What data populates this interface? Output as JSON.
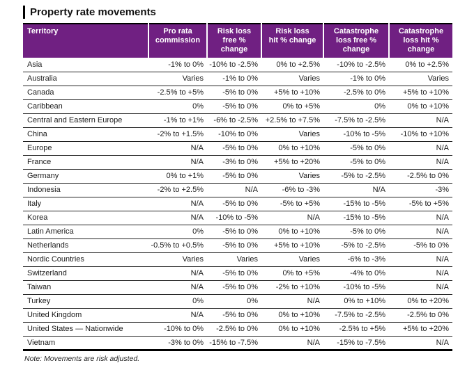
{
  "page": {
    "title": "Property rate movements",
    "note": "Note: Movements are risk adjusted."
  },
  "colors": {
    "header_bg": "#702082",
    "header_text": "#ffffff",
    "row_divider": "#222222",
    "table_bottom_border": "#000000"
  },
  "table": {
    "columns": [
      {
        "key": "territory",
        "label": "Territory"
      },
      {
        "key": "pro-rata-commission",
        "label": "Pro rata\ncommission"
      },
      {
        "key": "risk-loss-free-change",
        "label": "Risk loss\nfree %\nchange"
      },
      {
        "key": "risk-loss-hit-change",
        "label": "Risk loss\nhit % change"
      },
      {
        "key": "catastrophe-loss-free-change",
        "label": "Catastrophe\nloss free %\nchange"
      },
      {
        "key": "catastrophe-loss-hit-change",
        "label": "Catastrophe\nloss hit %\nchange"
      }
    ],
    "rows": [
      {
        "territory": "Asia",
        "values": [
          "-1% to 0%",
          "-10% to -2.5%",
          "0% to +2.5%",
          "-10% to -2.5%",
          "0% to +2.5%"
        ]
      },
      {
        "territory": "Australia",
        "values": [
          "Varies",
          "-1% to 0%",
          "Varies",
          "-1% to 0%",
          "Varies"
        ]
      },
      {
        "territory": "Canada",
        "values": [
          "-2.5% to +5%",
          "-5% to 0%",
          "+5% to +10%",
          "-2.5% to 0%",
          "+5% to +10%"
        ]
      },
      {
        "territory": "Caribbean",
        "values": [
          "0%",
          "-5% to 0%",
          "0% to +5%",
          "0%",
          "0% to +10%"
        ]
      },
      {
        "territory": "Central and Eastern Europe",
        "values": [
          "-1% to +1%",
          "-6% to -2.5%",
          "+2.5% to +7.5%",
          "-7.5% to -2.5%",
          "N/A"
        ]
      },
      {
        "territory": "China",
        "values": [
          "-2% to +1.5%",
          "-10% to 0%",
          "Varies",
          "-10% to -5%",
          "-10% to +10%"
        ]
      },
      {
        "territory": "Europe",
        "values": [
          "N/A",
          "-5% to 0%",
          "0% to +10%",
          "-5% to 0%",
          "N/A"
        ]
      },
      {
        "territory": "France",
        "values": [
          "N/A",
          "-3% to 0%",
          "+5% to +20%",
          "-5% to 0%",
          "N/A"
        ]
      },
      {
        "territory": "Germany",
        "values": [
          "0% to +1%",
          "-5% to 0%",
          "Varies",
          "-5% to -2.5%",
          "-2.5% to 0%"
        ]
      },
      {
        "territory": "Indonesia",
        "values": [
          "-2% to +2.5%",
          "N/A",
          "-6% to -3%",
          "N/A",
          "-3%"
        ]
      },
      {
        "territory": "Italy",
        "values": [
          "N/A",
          "-5% to 0%",
          "-5% to +5%",
          "-15% to -5%",
          "-5% to +5%"
        ]
      },
      {
        "territory": "Korea",
        "values": [
          "N/A",
          "-10% to -5%",
          "N/A",
          "-15% to -5%",
          "N/A"
        ]
      },
      {
        "territory": "Latin America",
        "values": [
          "0%",
          "-5% to 0%",
          "0% to +10%",
          "-5% to 0%",
          "N/A"
        ]
      },
      {
        "territory": "Netherlands",
        "values": [
          "-0.5% to +0.5%",
          "-5% to 0%",
          "+5% to +10%",
          "-5% to -2.5%",
          "-5% to 0%"
        ]
      },
      {
        "territory": "Nordic Countries",
        "values": [
          "Varies",
          "Varies",
          "Varies",
          "-6% to -3%",
          "N/A"
        ]
      },
      {
        "territory": "Switzerland",
        "values": [
          "N/A",
          "-5% to 0%",
          "0% to +5%",
          "-4% to 0%",
          "N/A"
        ]
      },
      {
        "territory": "Taiwan",
        "values": [
          "N/A",
          "-5% to 0%",
          "-2% to +10%",
          "-10% to -5%",
          "N/A"
        ]
      },
      {
        "territory": "Turkey",
        "values": [
          "0%",
          "0%",
          "N/A",
          "0% to +10%",
          "0% to +20%"
        ]
      },
      {
        "territory": "United Kingdom",
        "values": [
          "N/A",
          "-5% to 0%",
          "0% to +10%",
          "-7.5% to -2.5%",
          "-2.5% to 0%"
        ]
      },
      {
        "territory": "United States — Nationwide",
        "values": [
          "-10% to 0%",
          "-2.5% to 0%",
          "0% to +10%",
          "-2.5% to +5%",
          "+5% to +20%"
        ]
      },
      {
        "territory": "Vietnam",
        "values": [
          "-3% to 0%",
          "-15% to -7.5%",
          "N/A",
          "-15% to -7.5%",
          "N/A"
        ]
      }
    ]
  }
}
